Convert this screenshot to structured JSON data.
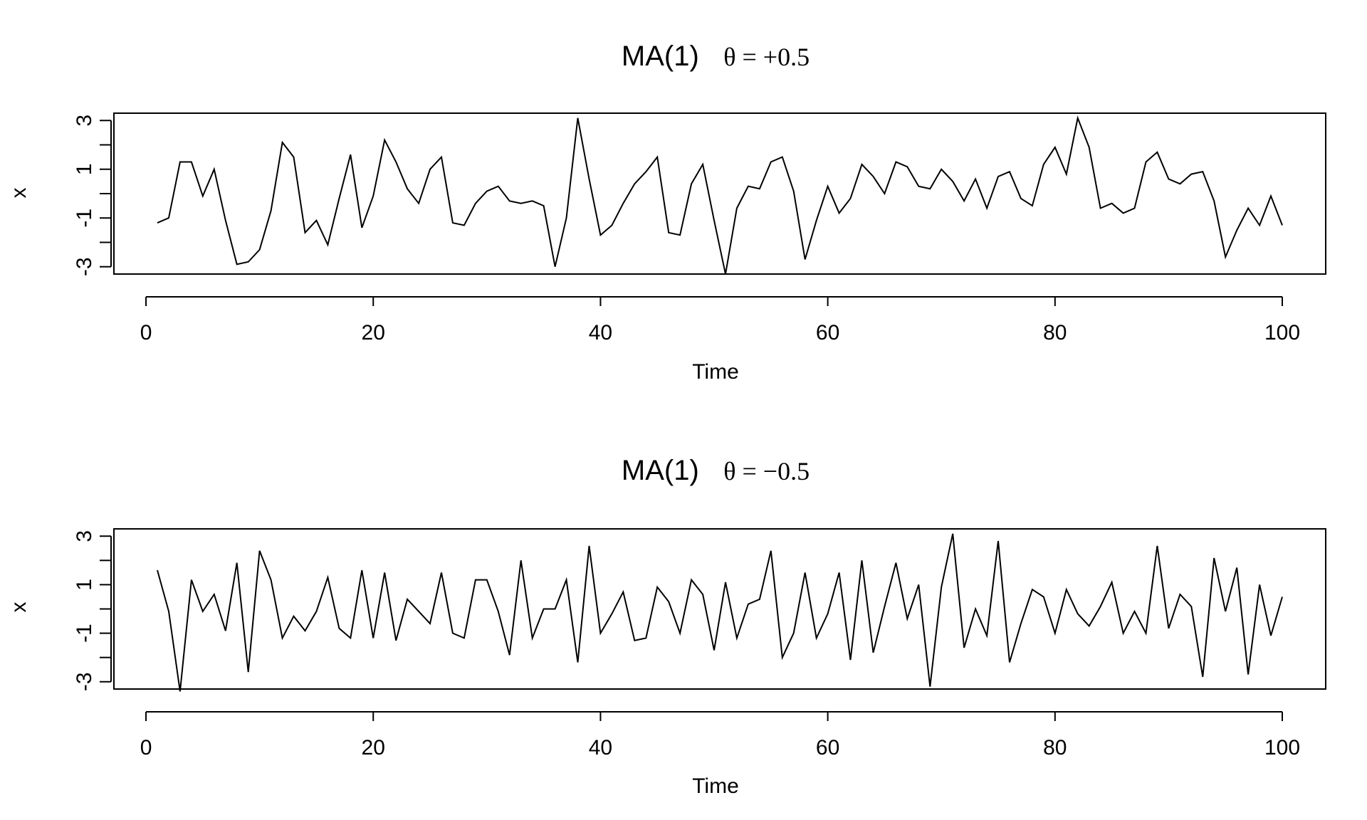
{
  "chart_data": [
    {
      "type": "line",
      "title_prefix": "MA(1)",
      "title_theta": "θ = +0.5",
      "xlabel": "Time",
      "ylabel": "x",
      "xlim": [
        1,
        100
      ],
      "ylim": [
        -3.3,
        3.3
      ],
      "xticks": [
        0,
        20,
        40,
        60,
        80,
        100
      ],
      "yticks": [
        -3,
        -2,
        -1,
        0,
        1,
        2,
        3
      ],
      "yticklabels": [
        "-3",
        "",
        "-1",
        "",
        "1",
        "",
        "3"
      ],
      "grid": false,
      "legend": "none",
      "x": [
        1,
        2,
        3,
        4,
        5,
        6,
        7,
        8,
        9,
        10,
        11,
        12,
        13,
        14,
        15,
        16,
        17,
        18,
        19,
        20,
        21,
        22,
        23,
        24,
        25,
        26,
        27,
        28,
        29,
        30,
        31,
        32,
        33,
        34,
        35,
        36,
        37,
        38,
        39,
        40,
        41,
        42,
        43,
        44,
        45,
        46,
        47,
        48,
        49,
        50,
        51,
        52,
        53,
        54,
        55,
        56,
        57,
        58,
        59,
        60,
        61,
        62,
        63,
        64,
        65,
        66,
        67,
        68,
        69,
        70,
        71,
        72,
        73,
        74,
        75,
        76,
        77,
        78,
        79,
        80,
        81,
        82,
        83,
        84,
        85,
        86,
        87,
        88,
        89,
        90,
        91,
        92,
        93,
        94,
        95,
        96,
        97,
        98,
        99,
        100
      ],
      "values": [
        -1.2,
        -1.0,
        1.3,
        1.3,
        -0.1,
        1.0,
        -1.1,
        -2.9,
        -2.8,
        -2.3,
        -0.7,
        2.1,
        1.5,
        -1.6,
        -1.1,
        -2.1,
        -0.2,
        1.6,
        -1.4,
        -0.1,
        2.2,
        1.3,
        0.2,
        -0.4,
        1.0,
        1.5,
        -1.2,
        -1.3,
        -0.4,
        0.1,
        0.3,
        -0.3,
        -0.4,
        -0.3,
        -0.5,
        -3.0,
        -1.0,
        3.1,
        0.6,
        -1.7,
        -1.3,
        -0.4,
        0.4,
        0.9,
        1.5,
        -1.6,
        -1.7,
        0.4,
        1.2,
        -1.1,
        -3.3,
        -0.6,
        0.3,
        0.2,
        1.3,
        1.5,
        0.1,
        -2.7,
        -1.1,
        0.3,
        -0.8,
        -0.2,
        1.2,
        0.7,
        0.0,
        1.3,
        1.1,
        0.3,
        0.2,
        1.0,
        0.5,
        -0.3,
        0.6,
        -0.6,
        0.7,
        0.9,
        -0.2,
        -0.5,
        1.2,
        1.9,
        0.8,
        3.1,
        1.9,
        -0.6,
        -0.4,
        -0.8,
        -0.6,
        1.3,
        1.7,
        0.6,
        0.4,
        0.8,
        0.9,
        -0.3,
        -2.6,
        -1.5,
        -0.6,
        -1.3,
        -0.1,
        -1.3
      ]
    },
    {
      "type": "line",
      "title_prefix": "MA(1)",
      "title_theta": "θ = −0.5",
      "xlabel": "Time",
      "ylabel": "x",
      "xlim": [
        1,
        100
      ],
      "ylim": [
        -3.3,
        3.3
      ],
      "xticks": [
        0,
        20,
        40,
        60,
        80,
        100
      ],
      "yticks": [
        -3,
        -2,
        -1,
        0,
        1,
        2,
        3
      ],
      "yticklabels": [
        "-3",
        "",
        "-1",
        "",
        "1",
        "",
        "3"
      ],
      "grid": false,
      "legend": "none",
      "x": [
        1,
        2,
        3,
        4,
        5,
        6,
        7,
        8,
        9,
        10,
        11,
        12,
        13,
        14,
        15,
        16,
        17,
        18,
        19,
        20,
        21,
        22,
        23,
        24,
        25,
        26,
        27,
        28,
        29,
        30,
        31,
        32,
        33,
        34,
        35,
        36,
        37,
        38,
        39,
        40,
        41,
        42,
        43,
        44,
        45,
        46,
        47,
        48,
        49,
        50,
        51,
        52,
        53,
        54,
        55,
        56,
        57,
        58,
        59,
        60,
        61,
        62,
        63,
        64,
        65,
        66,
        67,
        68,
        69,
        70,
        71,
        72,
        73,
        74,
        75,
        76,
        77,
        78,
        79,
        80,
        81,
        82,
        83,
        84,
        85,
        86,
        87,
        88,
        89,
        90,
        91,
        92,
        93,
        94,
        95,
        96,
        97,
        98,
        99,
        100
      ],
      "values": [
        1.6,
        -0.1,
        -3.4,
        1.2,
        -0.1,
        0.6,
        -0.9,
        1.9,
        -2.6,
        2.4,
        1.2,
        -1.2,
        -0.3,
        -0.9,
        -0.1,
        1.3,
        -0.8,
        -1.2,
        1.6,
        -1.2,
        1.5,
        -1.3,
        0.4,
        -0.1,
        -0.6,
        1.5,
        -1.0,
        -1.2,
        1.2,
        1.2,
        -0.1,
        -1.9,
        2.0,
        -1.2,
        0.0,
        0.0,
        1.2,
        -2.2,
        2.6,
        -1.0,
        -0.2,
        0.7,
        -1.3,
        -1.2,
        0.9,
        0.3,
        -1.0,
        1.2,
        0.6,
        -1.7,
        1.1,
        -1.2,
        0.2,
        0.4,
        2.4,
        -2.0,
        -1.0,
        1.5,
        -1.2,
        -0.2,
        1.5,
        -2.1,
        2.0,
        -1.8,
        0.1,
        1.9,
        -0.4,
        1.0,
        -3.2,
        0.9,
        3.1,
        -1.6,
        0.0,
        -1.1,
        2.8,
        -2.2,
        -0.6,
        0.8,
        0.5,
        -1.0,
        0.8,
        -0.2,
        -0.7,
        0.1,
        1.1,
        -1.0,
        -0.1,
        -1.0,
        2.6,
        -0.8,
        0.6,
        0.1,
        -2.8,
        2.1,
        -0.1,
        1.7,
        -2.7,
        1.0,
        -1.1,
        0.5
      ]
    }
  ]
}
